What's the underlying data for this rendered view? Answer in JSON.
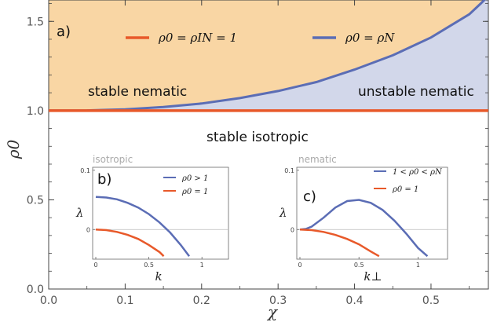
{
  "chart_data": {
    "type": "area",
    "panel_label": "a)",
    "xlabel": "χ",
    "ylabel": "ρ0",
    "xlim": [
      0.0,
      0.575
    ],
    "ylim": [
      0.0,
      1.62
    ],
    "xticks": [
      "0.0",
      "0.1",
      "0.2",
      "0.3",
      "0.4",
      "0.5"
    ],
    "yticks": [
      "0.0",
      "0.5",
      "1.0",
      "1.5"
    ],
    "grid": false,
    "legend_position": "top",
    "series": [
      {
        "name": "ρ0 = ρIN = 1",
        "color": "#e8592a",
        "x": [
          0.0,
          0.575
        ],
        "y": [
          1.0,
          1.0
        ]
      },
      {
        "name": "ρ0 = ρN",
        "color": "#5b6db5",
        "x": [
          0.0,
          0.05,
          0.1,
          0.15,
          0.2,
          0.25,
          0.3,
          0.35,
          0.4,
          0.45,
          0.5,
          0.55,
          0.565
        ],
        "y": [
          1.0,
          1.001,
          1.007,
          1.02,
          1.04,
          1.07,
          1.11,
          1.16,
          1.23,
          1.31,
          1.41,
          1.54,
          1.6
        ]
      }
    ],
    "regions": [
      {
        "label": "stable nematic",
        "color": "#f9d6a4"
      },
      {
        "label": "unstable nematic",
        "color": "#d2d7ea"
      },
      {
        "label": "stable isotropic",
        "color": "#ffffff"
      }
    ],
    "insets": [
      {
        "panel_label": "b)",
        "title": "isotropic",
        "xlabel": "k",
        "ylabel": "λ",
        "xticks": [
          "0",
          "0.5",
          "1"
        ],
        "yticks": [
          "0.1",
          "0"
        ],
        "series": [
          {
            "name": "ρ0 > 1",
            "color": "#5b6db5",
            "x": [
              0.0,
              0.1,
              0.2,
              0.3,
              0.4,
              0.5,
              0.6,
              0.7,
              0.8,
              0.88
            ],
            "y": [
              0.055,
              0.054,
              0.051,
              0.045,
              0.037,
              0.026,
              0.012,
              -0.005,
              -0.026,
              -0.045
            ]
          },
          {
            "name": "ρ0 = 1",
            "color": "#e8592a",
            "x": [
              0.0,
              0.1,
              0.2,
              0.3,
              0.4,
              0.5,
              0.6,
              0.64
            ],
            "y": [
              0.0,
              -0.001,
              -0.004,
              -0.009,
              -0.016,
              -0.026,
              -0.038,
              -0.045
            ]
          }
        ]
      },
      {
        "panel_label": "c)",
        "title": "nematic",
        "xlabel": "k⊥",
        "ylabel": "λ",
        "xticks": [
          "0",
          "0.5",
          "1"
        ],
        "yticks": [
          "0.1",
          "0"
        ],
        "series": [
          {
            "name": "1 < ρ0 < ρN",
            "color": "#5b6db5",
            "x": [
              0.0,
              0.05,
              0.1,
              0.2,
              0.3,
              0.4,
              0.5,
              0.6,
              0.7,
              0.8,
              0.9,
              1.0,
              1.08
            ],
            "y": [
              0.0,
              0.001,
              0.005,
              0.02,
              0.037,
              0.048,
              0.05,
              0.045,
              0.033,
              0.015,
              -0.007,
              -0.031,
              -0.045
            ]
          },
          {
            "name": "ρ0 = 1",
            "color": "#e8592a",
            "x": [
              0.0,
              0.1,
              0.2,
              0.3,
              0.4,
              0.5,
              0.6,
              0.67
            ],
            "y": [
              0.0,
              -0.001,
              -0.004,
              -0.009,
              -0.016,
              -0.025,
              -0.037,
              -0.045
            ]
          }
        ]
      }
    ]
  }
}
